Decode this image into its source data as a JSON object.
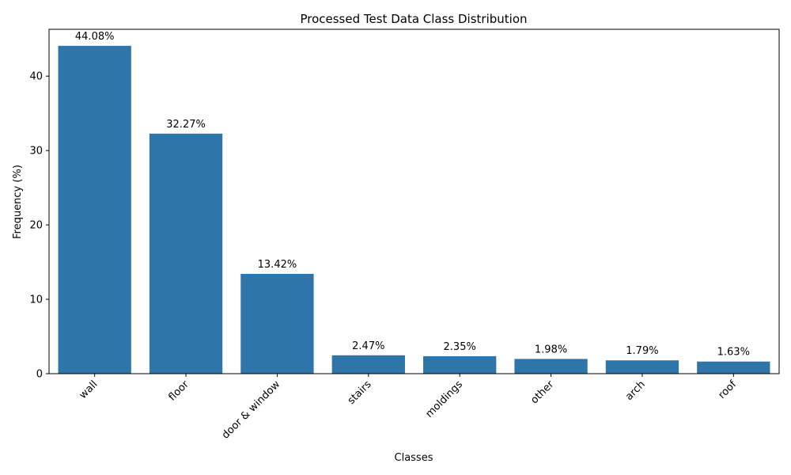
{
  "chart_data": {
    "type": "bar",
    "title": "Processed Test Data Class Distribution",
    "xlabel": "Classes",
    "ylabel": "Frequency (%)",
    "categories": [
      "wall",
      "floor",
      "door & window",
      "stairs",
      "moldings",
      "other",
      "arch",
      "roof"
    ],
    "values": [
      44.08,
      32.27,
      13.42,
      2.47,
      2.35,
      1.98,
      1.79,
      1.63
    ],
    "data_labels": [
      "44.08%",
      "32.27%",
      "13.42%",
      "2.47%",
      "2.35%",
      "1.98%",
      "1.79%",
      "1.63%"
    ],
    "ylim": [
      0,
      46.3
    ],
    "yticks": [
      0,
      10,
      20,
      30,
      40
    ],
    "ytick_labels": [
      "0",
      "10",
      "20",
      "30",
      "40"
    ],
    "bar_color": "#2e75a9",
    "grid": false,
    "legend": false,
    "xtick_rotation_deg": 45
  }
}
